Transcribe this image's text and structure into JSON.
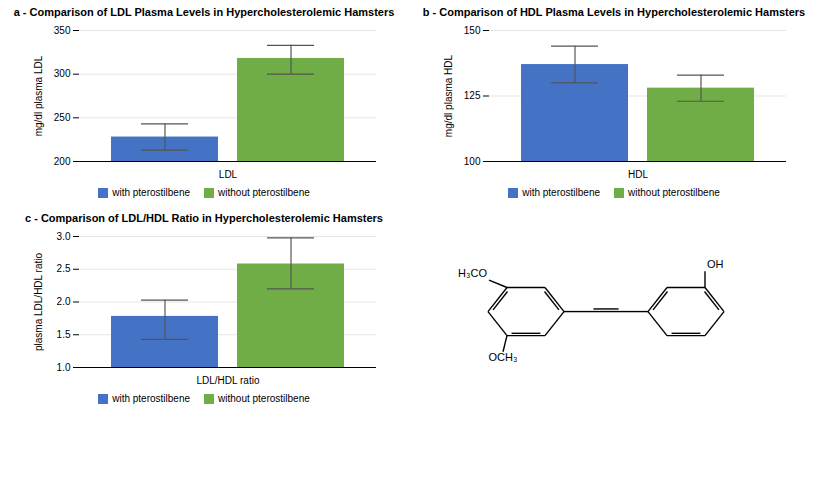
{
  "chart_data": [
    {
      "type": "bar",
      "title": "a - Comparison of LDL Plasma Levels in Hypercholesterolemic Hamsters",
      "categories": [
        "LDL"
      ],
      "series": [
        {
          "name": "with pterostilbene",
          "color": "#4472c4",
          "values": [
            228
          ],
          "errors_low": [
            15
          ],
          "errors_high": [
            15
          ]
        },
        {
          "name": "without pterostilbene",
          "color": "#70ad47",
          "values": [
            318
          ],
          "errors_low": [
            18
          ],
          "errors_high": [
            15
          ]
        }
      ],
      "ylabel": "mg/dl plasma LDL",
      "ylim": [
        200,
        350
      ],
      "yticks": [
        200,
        250,
        300,
        350
      ],
      "grid": true,
      "legend": "bottom"
    },
    {
      "type": "bar",
      "title": "b - Comparison of HDL Plasma Levels in Hypercholesterolemic Hamsters",
      "categories": [
        "HDL"
      ],
      "series": [
        {
          "name": "with pterostilbene",
          "color": "#4472c4",
          "values": [
            137
          ],
          "errors_low": [
            7
          ],
          "errors_high": [
            7
          ]
        },
        {
          "name": "without pterostilbene",
          "color": "#70ad47",
          "values": [
            128
          ],
          "errors_low": [
            5
          ],
          "errors_high": [
            5
          ]
        }
      ],
      "ylabel": "mg/dl plasma HDL",
      "ylim": [
        100,
        150
      ],
      "yticks": [
        100,
        125,
        150
      ],
      "grid": true,
      "legend": "bottom"
    },
    {
      "type": "bar",
      "title": "c - Comparison of LDL/HDL Ratio in Hypercholesterolemic Hamsters",
      "categories": [
        "LDL/HDL ratio"
      ],
      "series": [
        {
          "name": "with pterostilbene",
          "color": "#4472c4",
          "values": [
            1.78
          ],
          "errors_low": [
            0.35
          ],
          "errors_high": [
            0.25
          ]
        },
        {
          "name": "without pterostilbene",
          "color": "#70ad47",
          "values": [
            2.58
          ],
          "errors_low": [
            0.38
          ],
          "errors_high": [
            0.4
          ]
        }
      ],
      "ylabel": "plasma LDL/HDL ratio",
      "ylim": [
        1,
        3
      ],
      "yticks": [
        {
          "value": 1,
          "label": "1.0"
        },
        1.5,
        {
          "value": 2,
          "label": "2.0"
        },
        2.5,
        {
          "value": 3,
          "label": "3.0"
        }
      ],
      "grid": true,
      "legend": "bottom"
    },
    {
      "type": "structure",
      "annotations": [
        "OH",
        "H₃CO",
        "OCH₃"
      ]
    }
  ]
}
